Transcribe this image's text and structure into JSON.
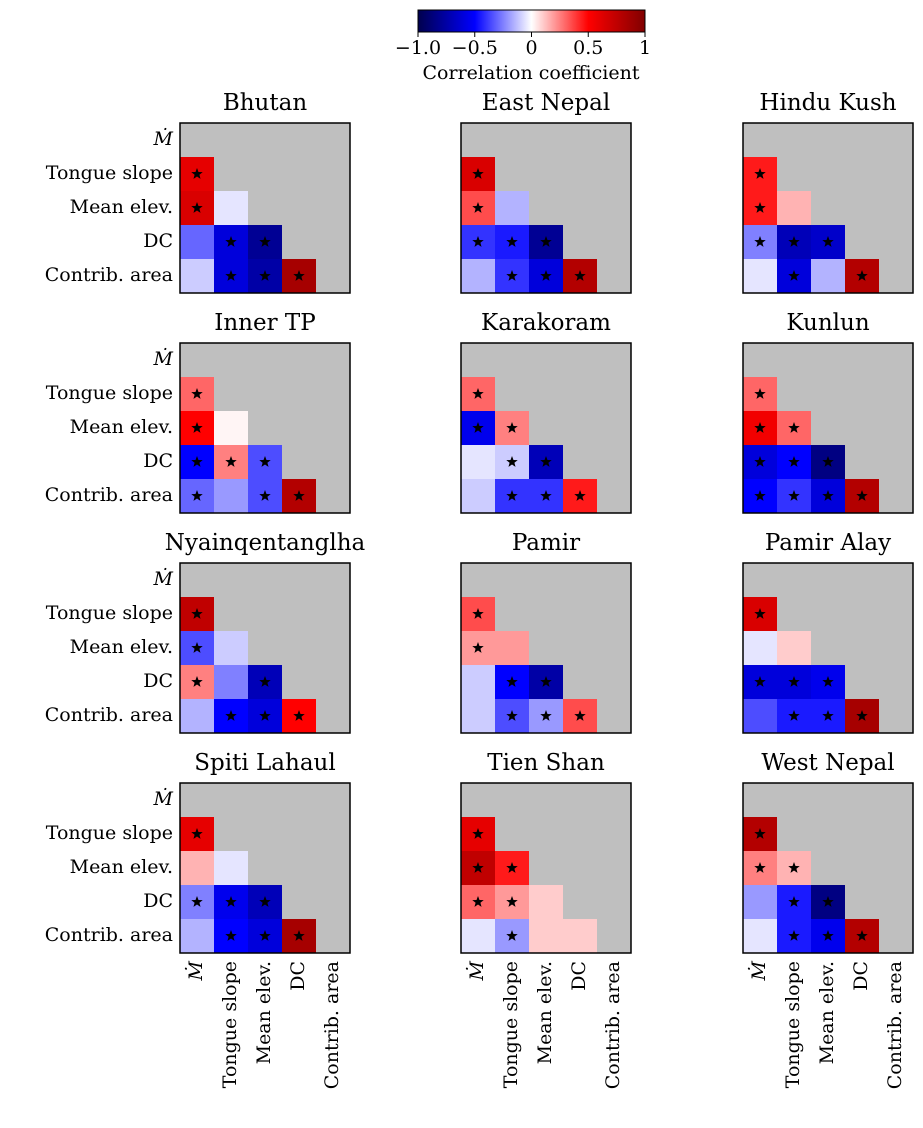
{
  "chart_data": {
    "type": "heatmap",
    "colorbar": {
      "lim": [
        -1,
        1
      ],
      "ticks": [
        {
          "value": -1,
          "label": "−1.0"
        },
        {
          "value": -0.5,
          "label": "−0.5"
        },
        0.0,
        0.5,
        1.0
      ],
      "label": "Correlation coefficient"
    },
    "variables": [
      "Ṁ",
      "Tongue slope",
      "Mean elev.",
      "DC",
      "Contrib. area"
    ],
    "panels": [
      {
        "title": "Bhutan",
        "values": [
          [
            0.6
          ],
          [
            0.65,
            -0.05
          ],
          [
            -0.3,
            -0.6,
            -0.8
          ],
          [
            -0.1,
            -0.6,
            -0.75,
            0.85
          ]
        ],
        "significant": [
          [
            true
          ],
          [
            true,
            false
          ],
          [
            false,
            true,
            true
          ],
          [
            false,
            true,
            true,
            true
          ]
        ]
      },
      {
        "title": "East Nepal",
        "values": [
          [
            0.65
          ],
          [
            0.35,
            -0.15
          ],
          [
            -0.4,
            -0.45,
            -0.8
          ],
          [
            -0.15,
            -0.4,
            -0.6,
            0.8
          ]
        ],
        "significant": [
          [
            true
          ],
          [
            true,
            false
          ],
          [
            true,
            true,
            true
          ],
          [
            false,
            true,
            true,
            true
          ]
        ]
      },
      {
        "title": "Hindu Kush",
        "values": [
          [
            0.45
          ],
          [
            0.45,
            0.15
          ],
          [
            -0.25,
            -0.7,
            -0.65
          ],
          [
            -0.05,
            -0.6,
            -0.15,
            0.8
          ]
        ],
        "significant": [
          [
            true
          ],
          [
            true,
            false
          ],
          [
            true,
            true,
            true
          ],
          [
            false,
            true,
            false,
            true
          ]
        ]
      },
      {
        "title": "Inner TP",
        "values": [
          [
            0.3
          ],
          [
            0.5,
            0.02
          ],
          [
            -0.5,
            0.25,
            -0.35
          ],
          [
            -0.3,
            -0.2,
            -0.35,
            0.8
          ]
        ],
        "significant": [
          [
            true
          ],
          [
            true,
            false
          ],
          [
            true,
            true,
            true
          ],
          [
            true,
            false,
            true,
            true
          ]
        ]
      },
      {
        "title": "Karakoram",
        "values": [
          [
            0.3
          ],
          [
            -0.55,
            0.25
          ],
          [
            -0.05,
            -0.1,
            -0.7
          ],
          [
            -0.1,
            -0.4,
            -0.4,
            0.45
          ]
        ],
        "significant": [
          [
            true
          ],
          [
            true,
            true
          ],
          [
            false,
            true,
            true
          ],
          [
            false,
            true,
            true,
            true
          ]
        ]
      },
      {
        "title": "Kunlun",
        "values": [
          [
            0.3
          ],
          [
            0.55,
            0.3
          ],
          [
            -0.6,
            -0.5,
            -0.85
          ],
          [
            -0.5,
            -0.4,
            -0.6,
            0.8
          ]
        ],
        "significant": [
          [
            true
          ],
          [
            true,
            true
          ],
          [
            true,
            true,
            true
          ],
          [
            true,
            true,
            true,
            true
          ]
        ]
      },
      {
        "title": "Nyainqentanglha",
        "values": [
          [
            0.75
          ],
          [
            -0.35,
            -0.1
          ],
          [
            0.25,
            -0.25,
            -0.7
          ],
          [
            -0.15,
            -0.5,
            -0.6,
            0.5
          ]
        ],
        "significant": [
          [
            true
          ],
          [
            true,
            false
          ],
          [
            true,
            false,
            true
          ],
          [
            false,
            true,
            true,
            true
          ]
        ]
      },
      {
        "title": "Pamir",
        "values": [
          [
            0.35
          ],
          [
            0.2,
            0.2
          ],
          [
            -0.1,
            -0.5,
            -0.75
          ],
          [
            -0.1,
            -0.35,
            -0.2,
            0.35
          ]
        ],
        "significant": [
          [
            true
          ],
          [
            true,
            false
          ],
          [
            false,
            true,
            true
          ],
          [
            false,
            true,
            true,
            true
          ]
        ]
      },
      {
        "title": "Pamir Alay",
        "values": [
          [
            0.65
          ],
          [
            -0.05,
            0.1
          ],
          [
            -0.6,
            -0.6,
            -0.55
          ],
          [
            -0.35,
            -0.45,
            -0.45,
            0.85
          ]
        ],
        "significant": [
          [
            true
          ],
          [
            false,
            false
          ],
          [
            true,
            true,
            true
          ],
          [
            false,
            true,
            true,
            true
          ]
        ]
      },
      {
        "title": "Spiti Lahaul",
        "values": [
          [
            0.6
          ],
          [
            0.15,
            -0.05
          ],
          [
            -0.25,
            -0.55,
            -0.7
          ],
          [
            -0.15,
            -0.5,
            -0.6,
            0.85
          ]
        ],
        "significant": [
          [
            true
          ],
          [
            false,
            false
          ],
          [
            true,
            true,
            true
          ],
          [
            false,
            true,
            true,
            true
          ]
        ]
      },
      {
        "title": "Tien Shan",
        "values": [
          [
            0.6
          ],
          [
            0.75,
            0.45
          ],
          [
            0.3,
            0.2,
            0.1
          ],
          [
            -0.05,
            -0.2,
            0.1,
            0.1
          ]
        ],
        "significant": [
          [
            true
          ],
          [
            true,
            true
          ],
          [
            true,
            true,
            false
          ],
          [
            false,
            true,
            false,
            false
          ]
        ]
      },
      {
        "title": "West Nepal",
        "values": [
          [
            0.8
          ],
          [
            0.25,
            0.15
          ],
          [
            -0.2,
            -0.45,
            -0.85
          ],
          [
            -0.05,
            -0.45,
            -0.55,
            0.8
          ]
        ],
        "significant": [
          [
            true
          ],
          [
            true,
            true
          ],
          [
            false,
            true,
            true
          ],
          [
            false,
            true,
            true,
            true
          ]
        ]
      }
    ]
  }
}
